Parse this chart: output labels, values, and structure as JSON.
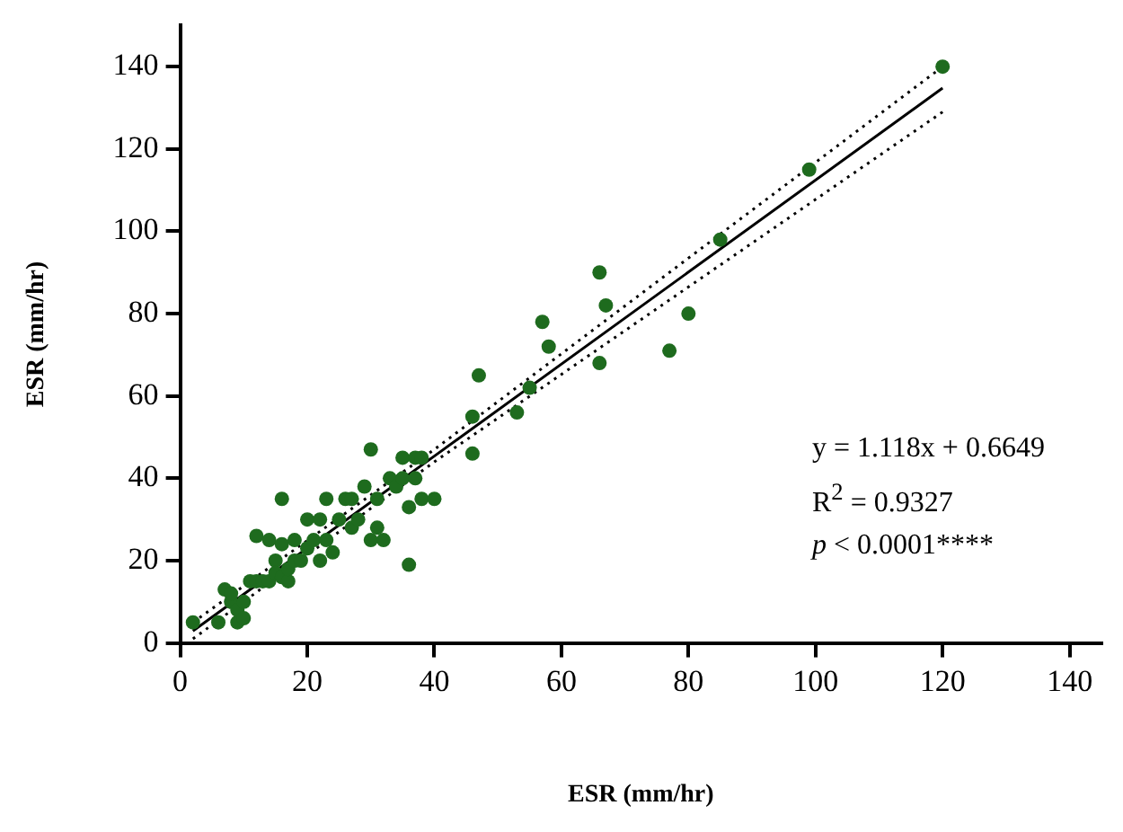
{
  "chart_data": {
    "type": "scatter",
    "xlabel": "ESR (mm/hr)",
    "ylabel": "ESR (mm/hr)",
    "xlim": [
      0,
      145
    ],
    "ylim": [
      0,
      150
    ],
    "xticks": [
      0,
      20,
      40,
      60,
      80,
      100,
      120,
      140
    ],
    "yticks": [
      0,
      20,
      40,
      60,
      80,
      100,
      120,
      140
    ],
    "grid": false,
    "series": [
      {
        "marker": "circle",
        "color": "#1e6b1e",
        "x": [
          2,
          6,
          7,
          8,
          8,
          9,
          9,
          10,
          10,
          11,
          12,
          12,
          13,
          14,
          14,
          15,
          15,
          16,
          16,
          16,
          17,
          17,
          18,
          18,
          19,
          20,
          20,
          21,
          22,
          22,
          23,
          23,
          24,
          25,
          26,
          27,
          27,
          28,
          29,
          30,
          30,
          31,
          31,
          32,
          33,
          34,
          35,
          35,
          36,
          36,
          37,
          37,
          38,
          38,
          40,
          46,
          46,
          47,
          53,
          55,
          57,
          58,
          66,
          66,
          67,
          77,
          80,
          85,
          99,
          120
        ],
        "values": [
          5,
          5,
          13,
          10,
          12,
          8,
          5,
          10,
          6,
          15,
          26,
          15,
          15,
          25,
          15,
          20,
          17,
          35,
          24,
          16,
          15,
          18,
          25,
          20,
          20,
          23,
          30,
          25,
          20,
          30,
          35,
          25,
          22,
          30,
          35,
          28,
          35,
          30,
          38,
          47,
          25,
          35,
          28,
          25,
          40,
          38,
          45,
          40,
          19,
          33,
          45,
          40,
          35,
          45,
          35,
          55,
          46,
          65,
          56,
          62,
          78,
          72,
          90,
          68,
          82,
          71,
          80,
          98,
          115,
          140
        ]
      },
      {
        "type": "line",
        "marker": "none",
        "color": "#000000",
        "line_style": "solid",
        "x": [
          2,
          40,
          120
        ],
        "values": [
          2.9,
          45.4,
          134.8
        ]
      },
      {
        "type": "line",
        "marker": "none",
        "color": "#000000",
        "line_style": "dotted",
        "x": [
          2,
          40,
          120
        ],
        "values": [
          5,
          47,
          140
        ]
      },
      {
        "type": "line",
        "marker": "none",
        "color": "#000000",
        "line_style": "dotted",
        "x": [
          2,
          40,
          120
        ],
        "values": [
          1,
          44,
          129
        ]
      }
    ],
    "annotations": [
      "y = 1.118x + 0.6649",
      "R$^{2}$ = 0.9327",
      "p < 0.0001****"
    ]
  }
}
